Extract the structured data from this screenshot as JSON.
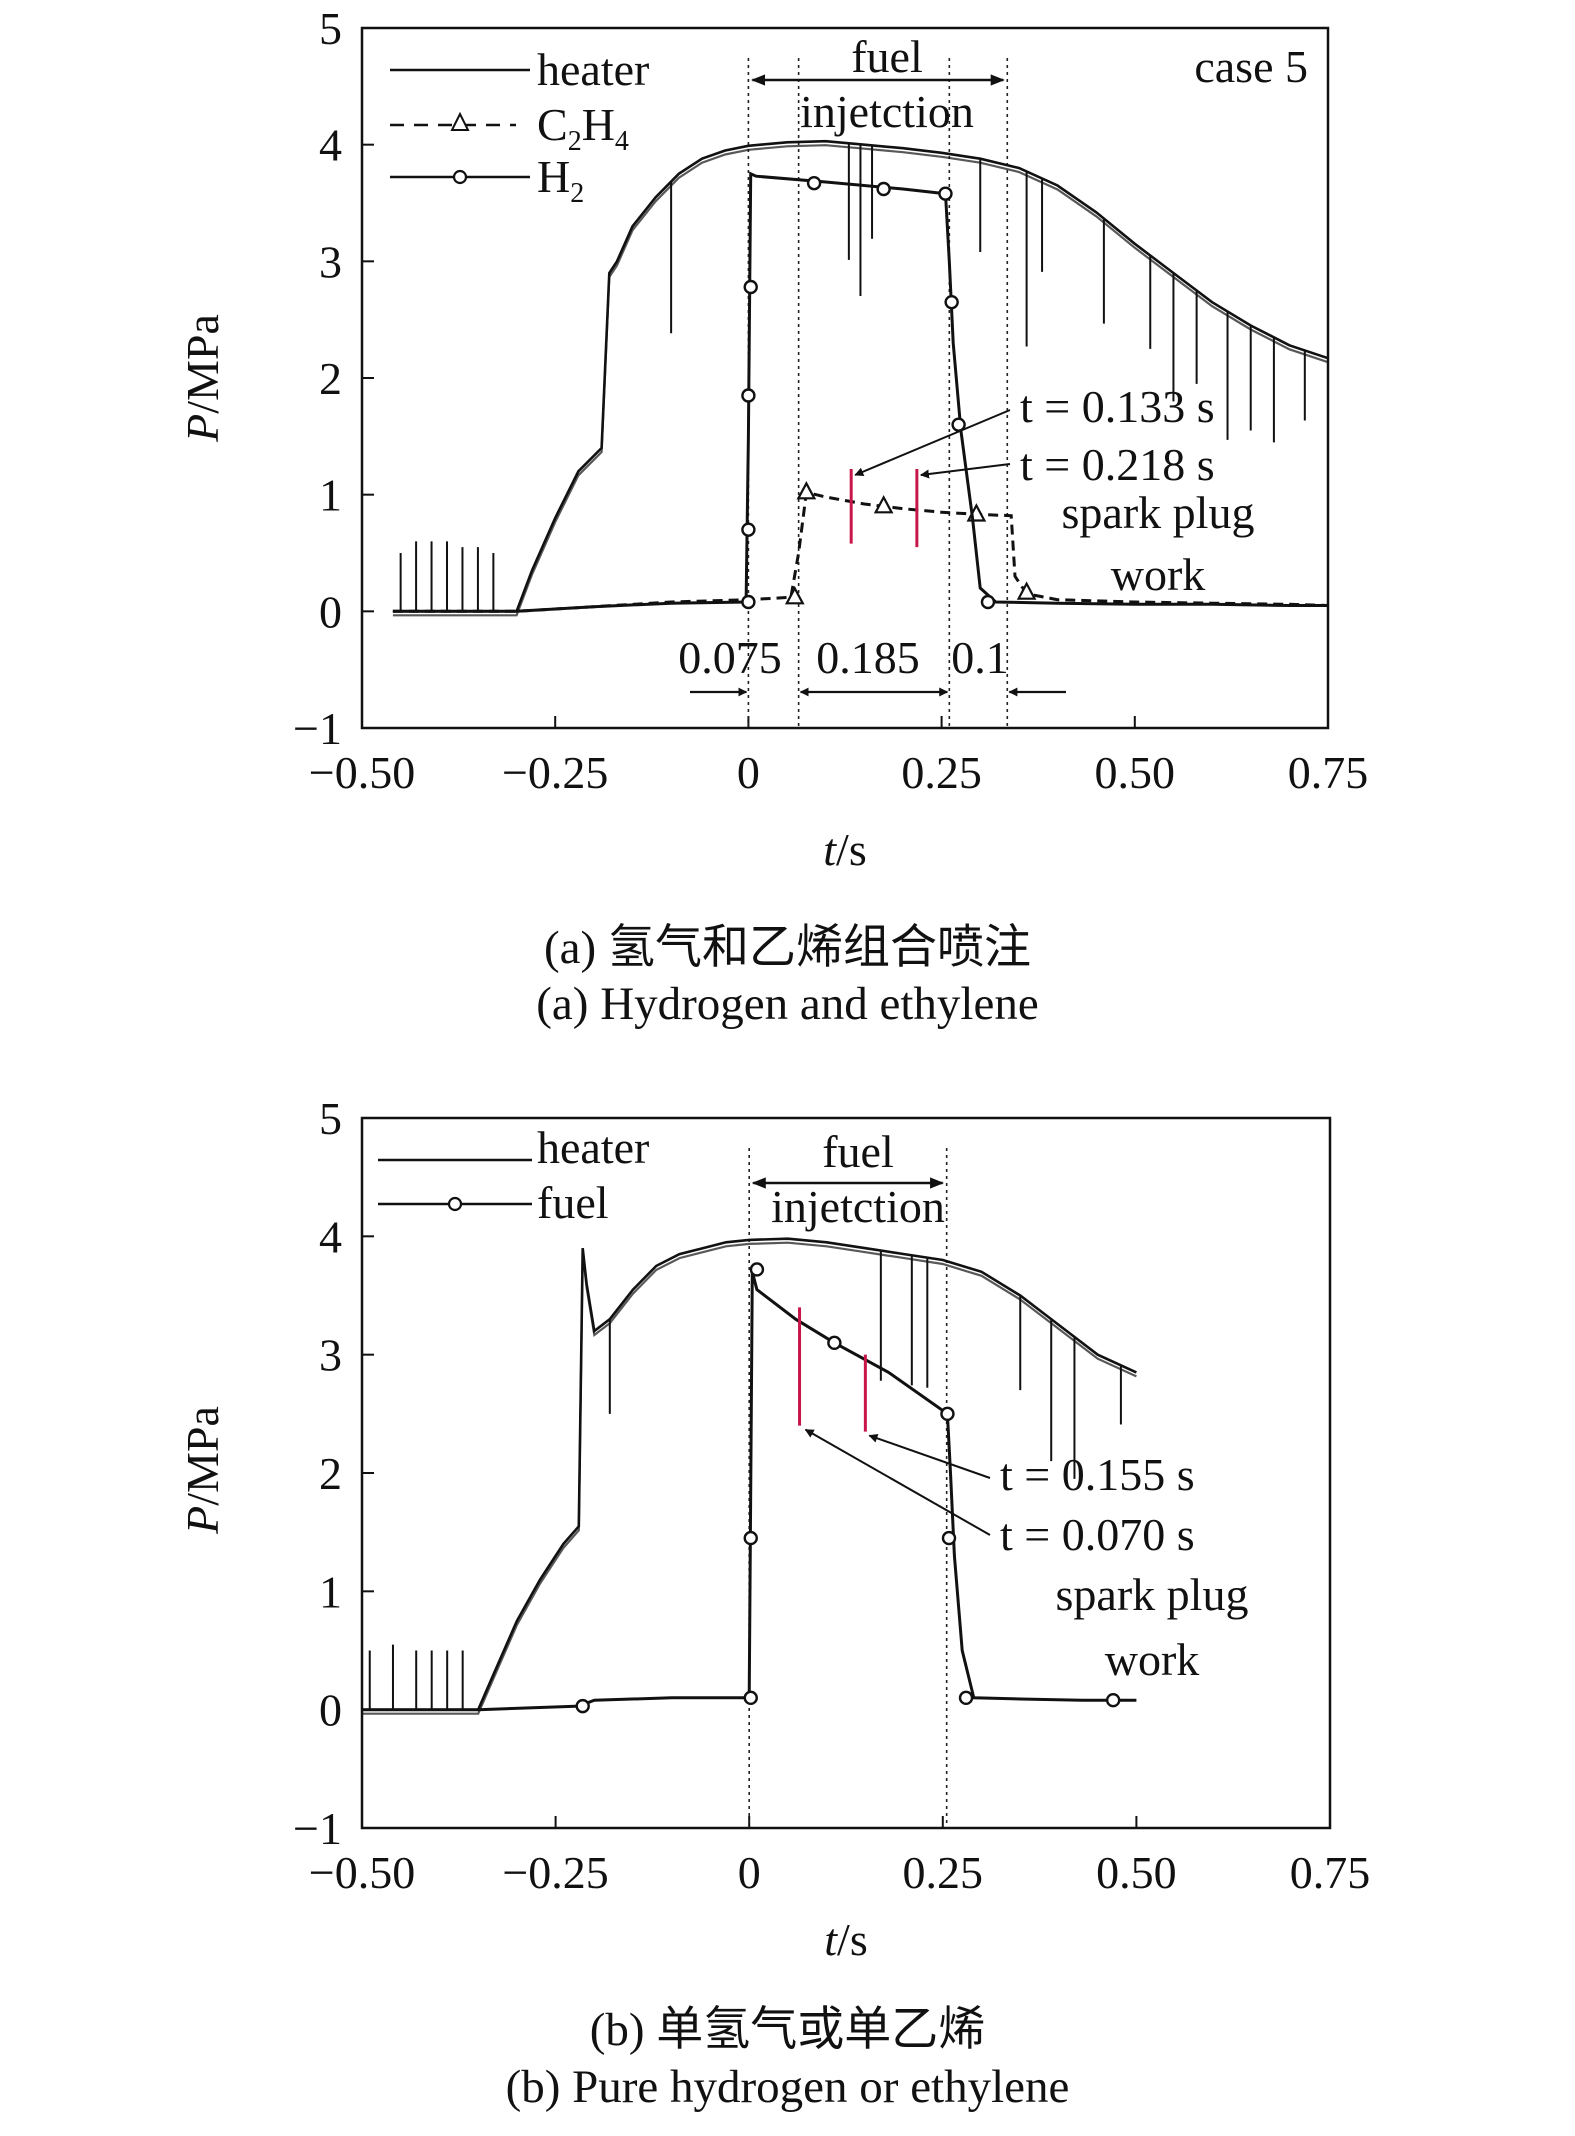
{
  "chart_data": [
    {
      "type": "line",
      "panel": "a",
      "caption_cn": "(a) 氢气和乙烯组合喷注",
      "caption_en": "(a) Hydrogen and ethylene",
      "case_label": "case 5",
      "xlabel": "t/s",
      "ylabel": "P/MPa",
      "xlim": [
        -0.5,
        0.75
      ],
      "ylim": [
        -1,
        5
      ],
      "xticks": [
        "−0.50",
        "−0.25",
        "0",
        "0.25",
        "0.50",
        "0.75"
      ],
      "yticks": [
        "−1",
        "0",
        "1",
        "2",
        "3",
        "4",
        "5"
      ],
      "legend": [
        "heater",
        "C2H4",
        "H2"
      ],
      "series": [
        {
          "name": "heater",
          "style": "solid",
          "x": [
            -0.46,
            -0.3,
            -0.28,
            -0.25,
            -0.22,
            -0.19,
            -0.18,
            -0.17,
            -0.15,
            -0.12,
            -0.09,
            -0.06,
            -0.03,
            0,
            0.05,
            0.1,
            0.15,
            0.2,
            0.25,
            0.3,
            0.35,
            0.4,
            0.45,
            0.5,
            0.55,
            0.6,
            0.65,
            0.7,
            0.75
          ],
          "y": [
            0,
            0,
            0.35,
            0.8,
            1.2,
            1.4,
            2.9,
            3.0,
            3.3,
            3.55,
            3.75,
            3.88,
            3.95,
            3.99,
            4.02,
            4.03,
            4.0,
            3.97,
            3.93,
            3.88,
            3.8,
            3.65,
            3.42,
            3.15,
            2.9,
            2.65,
            2.45,
            2.28,
            2.17
          ],
          "spikes": {
            "x": [
              -0.45,
              -0.43,
              -0.41,
              -0.39,
              -0.37,
              -0.35,
              -0.33,
              -0.1,
              0.13,
              0.145,
              0.16,
              0.3,
              0.36,
              0.38,
              0.46,
              0.52,
              0.55,
              0.58,
              0.62,
              0.65,
              0.68,
              0.72
            ],
            "depth": [
              0.5,
              0.6,
              0.6,
              0.6,
              0.55,
              0.55,
              0.5,
              1.3,
              1.0,
              1.3,
              0.8,
              0.8,
              1.5,
              0.8,
              0.9,
              0.8,
              1.1,
              0.8,
              1.1,
              0.9,
              0.9,
              0.6
            ]
          }
        },
        {
          "name": "C2H4",
          "style": "dashed",
          "marker": "triangle",
          "x": [
            -0.46,
            -0.3,
            -0.2,
            -0.1,
            0,
            0.055,
            0.065,
            0.075,
            0.1,
            0.15,
            0.2,
            0.25,
            0.3,
            0.34,
            0.345,
            0.36,
            0.4,
            0.5,
            0.6,
            0.7,
            0.75
          ],
          "y": [
            0,
            0,
            0.04,
            0.08,
            0.1,
            0.12,
            0.5,
            1.02,
            0.98,
            0.92,
            0.88,
            0.85,
            0.83,
            0.82,
            0.3,
            0.15,
            0.1,
            0.08,
            0.07,
            0.06,
            0.05
          ],
          "markers_x": [
            0.06,
            0.075,
            0.175,
            0.295,
            0.36
          ],
          "markers_y": [
            0.12,
            1.02,
            0.9,
            0.83,
            0.16
          ]
        },
        {
          "name": "H2",
          "style": "solid",
          "marker": "circle",
          "x": [
            -0.46,
            -0.3,
            -0.2,
            -0.1,
            -0.003,
            0,
            0.003,
            0.01,
            0.1,
            0.2,
            0.255,
            0.26,
            0.265,
            0.275,
            0.29,
            0.3,
            0.32,
            0.4,
            0.5,
            0.6,
            0.7,
            0.75
          ],
          "y": [
            0,
            0,
            0.04,
            0.07,
            0.08,
            1.5,
            3.75,
            3.73,
            3.68,
            3.62,
            3.58,
            3.0,
            2.3,
            1.55,
            0.8,
            0.2,
            0.08,
            0.07,
            0.06,
            0.06,
            0.05,
            0.05
          ],
          "markers_x": [
            0,
            0,
            0,
            0.003,
            0.085,
            0.175,
            0.255,
            0.263,
            0.272,
            0.31
          ],
          "markers_y": [
            0.08,
            0.7,
            1.85,
            2.78,
            3.67,
            3.62,
            3.58,
            2.65,
            1.6,
            0.08
          ]
        }
      ],
      "spark_plug_times": [
        0.133,
        0.218
      ],
      "spark_lines": [
        {
          "t": 0.133,
          "y0": 0.58,
          "y1": 1.22
        },
        {
          "t": 0.218,
          "y0": 0.55,
          "y1": 1.22
        }
      ],
      "vlines": [
        0,
        0.065,
        0.26,
        0.335
      ],
      "annotations": {
        "fuel": "fuel",
        "injection": "injetction",
        "t1": "t = 0.133 s",
        "t2": "t = 0.218 s",
        "spark": "spark plug",
        "work": "work",
        "d1": "0.075",
        "d2": "0.185",
        "d3": "0.1"
      }
    },
    {
      "type": "line",
      "panel": "b",
      "caption_cn": "(b) 单氢气或单乙烯",
      "caption_en": "(b) Pure hydrogen or ethylene",
      "xlabel": "t/s",
      "ylabel": "P/MPa",
      "xlim": [
        -0.5,
        0.75
      ],
      "ylim": [
        -1,
        5
      ],
      "xticks": [
        "−0.50",
        "−0.25",
        "0",
        "0.25",
        "0.50",
        "0.75"
      ],
      "yticks": [
        "−1",
        "0",
        "1",
        "2",
        "3",
        "4",
        "5"
      ],
      "legend": [
        "heater",
        "fuel"
      ],
      "series": [
        {
          "name": "heater",
          "style": "solid",
          "x": [
            -0.5,
            -0.35,
            -0.33,
            -0.3,
            -0.27,
            -0.24,
            -0.22,
            -0.215,
            -0.21,
            -0.2,
            -0.18,
            -0.15,
            -0.12,
            -0.09,
            -0.06,
            -0.03,
            0,
            0.05,
            0.1,
            0.15,
            0.2,
            0.25,
            0.3,
            0.35,
            0.4,
            0.45,
            0.5
          ],
          "y": [
            0,
            0,
            0.3,
            0.75,
            1.1,
            1.4,
            1.55,
            3.9,
            3.6,
            3.2,
            3.3,
            3.55,
            3.75,
            3.85,
            3.9,
            3.95,
            3.97,
            3.98,
            3.95,
            3.9,
            3.85,
            3.8,
            3.7,
            3.5,
            3.25,
            3.0,
            2.85
          ],
          "spikes": {
            "x": [
              -0.49,
              -0.46,
              -0.43,
              -0.41,
              -0.39,
              -0.37,
              -0.18,
              0.17,
              0.21,
              0.23,
              0.35,
              0.39,
              0.42,
              0.48
            ],
            "depth": [
              0.5,
              0.55,
              0.5,
              0.5,
              0.5,
              0.5,
              0.8,
              1.1,
              1.1,
              1.1,
              0.8,
              1.2,
              1.2,
              0.5
            ]
          }
        },
        {
          "name": "fuel",
          "style": "solid",
          "marker": "circle",
          "x": [
            -0.5,
            -0.35,
            -0.22,
            -0.2,
            -0.1,
            0,
            0.004,
            0.01,
            0.06,
            0.11,
            0.18,
            0.256,
            0.26,
            0.265,
            0.275,
            0.29,
            0.35,
            0.43,
            0.5
          ],
          "y": [
            0,
            0,
            0.03,
            0.08,
            0.1,
            0.1,
            3.7,
            3.55,
            3.3,
            3.1,
            2.85,
            2.5,
            2.0,
            1.3,
            0.5,
            0.1,
            0.09,
            0.08,
            0.08
          ],
          "markers_x": [
            -0.215,
            0.002,
            0.002,
            0.01,
            0.11,
            0.256,
            0.258,
            0.28,
            0.47
          ],
          "markers_y": [
            0.03,
            0.1,
            1.45,
            3.72,
            3.1,
            2.5,
            1.45,
            0.1,
            0.08
          ]
        }
      ],
      "spark_plug_times": [
        0.155,
        0.07
      ],
      "spark_lines": [
        {
          "t": 0.065,
          "y0": 2.4,
          "y1": 3.4
        },
        {
          "t": 0.15,
          "y0": 2.35,
          "y1": 3.0
        }
      ],
      "vlines": [
        0,
        0.255
      ],
      "annotations": {
        "fuel": "fuel",
        "injection": "injetction",
        "t1": "t = 0.155 s",
        "t2": "t = 0.070 s",
        "spark": "spark plug",
        "work": "work"
      }
    }
  ]
}
